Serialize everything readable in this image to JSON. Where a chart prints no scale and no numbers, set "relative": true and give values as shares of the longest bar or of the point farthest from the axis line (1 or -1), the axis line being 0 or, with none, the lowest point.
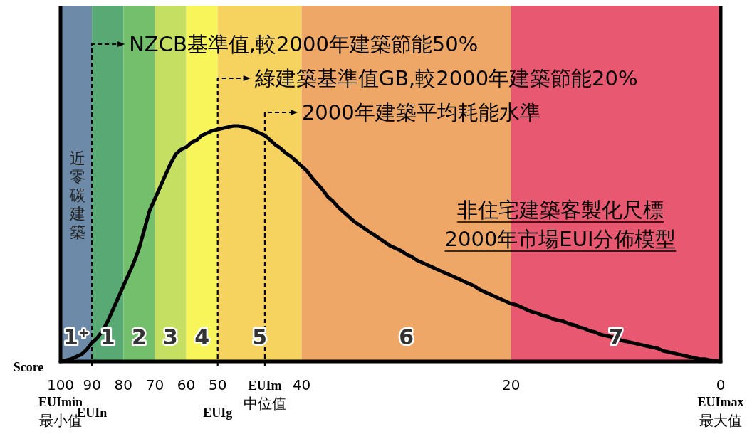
{
  "chart_data": {
    "type": "line",
    "title": "非住宅建築客製化尺標",
    "subtitle": "2000年市場EUI分佈模型",
    "xlabel": "Score",
    "relative": true,
    "categories": [
      "100\nEUImin\n最小值",
      null,
      null,
      null,
      null,
      null,
      "90\nEUIn",
      null,
      null,
      null,
      null,
      null,
      "80",
      null,
      null,
      null,
      null,
      null,
      "70",
      null,
      null,
      null,
      null,
      null,
      "60",
      null,
      null,
      null,
      null,
      null,
      "50\nEUIg",
      null,
      null,
      null,
      null,
      null,
      null,
      null,
      null,
      "EUIm\n中位值",
      null,
      null,
      null,
      null,
      null,
      null,
      "40",
      null,
      null,
      null,
      null,
      null,
      null,
      null,
      null,
      null,
      null,
      null,
      null,
      null,
      null,
      null,
      null,
      null,
      null,
      null,
      null,
      null,
      null,
      null,
      null,
      null,
      null,
      null,
      null,
      null,
      null,
      null,
      null,
      null,
      null,
      null,
      null,
      null,
      null,
      null,
      "20",
      null,
      null,
      null,
      null,
      null,
      null,
      null,
      null,
      null,
      null,
      null,
      null,
      null,
      null,
      null,
      null,
      null,
      null,
      null,
      null,
      null,
      null,
      null,
      null,
      null,
      null,
      null,
      null,
      null,
      null,
      null,
      null,
      null,
      null,
      null,
      null,
      null,
      null,
      null,
      "0\nEUImax\n最大值"
    ],
    "annotations": [
      "近零碳建築"
    ],
    "bands": [
      {
        "axis": "x",
        "from": "100\nEUImin\n最小值",
        "to": "90\nEUIn",
        "label": "1$^{+}$",
        "color": "#6d8ba8"
      },
      {
        "axis": "x",
        "from": "90\nEUIn",
        "to": "80",
        "label": "1",
        "color": "#58a973"
      },
      {
        "axis": "x",
        "from": "80",
        "to": "70",
        "label": "2",
        "color": "#74bf6c"
      },
      {
        "axis": "x",
        "from": "70",
        "to": "60",
        "label": "3",
        "color": "#c5df62"
      },
      {
        "axis": "x",
        "from": "60",
        "to": "50\nEUIg",
        "label": "4",
        "color": "#f7f55a"
      },
      {
        "axis": "x",
        "from": "50\nEUIg",
        "to": "40",
        "label": "5",
        "color": "#f5d35e"
      },
      {
        "axis": "x",
        "from": "40",
        "to": "20",
        "label": "6",
        "color": "#eea767"
      },
      {
        "axis": "x",
        "from": "20",
        "to": "0\nEUImax\n最大值",
        "label": "7",
        "color": "#e85870"
      }
    ],
    "ref_lines": [
      {
        "axis": "x",
        "value": "90\nEUIn",
        "label": "NZCB基準值,較2000年建築節能50%",
        "line_style": "dashed"
      },
      {
        "axis": "x",
        "value": "50\nEUIg",
        "label": "綠建築基準值GB,較2000年建築節能20%",
        "line_style": "dashed"
      },
      {
        "axis": "x",
        "value": "EUIm\n中位值",
        "label": "2000年建築平均耗能水準",
        "line_style": "dashed"
      }
    ],
    "grid": false,
    "marker": "none",
    "line_style": "solid",
    "series": [
      {
        "color": "#000000",
        "values": [
          0,
          0.005,
          0.01,
          0.02,
          0.03,
          0.05,
          0.08,
          0.1,
          0.13,
          0.17,
          0.22,
          0.27,
          0.32,
          0.37,
          0.42,
          0.48,
          0.56,
          0.64,
          0.69,
          0.74,
          0.79,
          0.84,
          0.88,
          0.9,
          0.91,
          0.93,
          0.94,
          0.96,
          0.97,
          0.98,
          0.985,
          0.99,
          0.995,
          1.0,
          1.0,
          0.995,
          0.99,
          0.98,
          0.97,
          0.96,
          0.94,
          0.92,
          0.905,
          0.885,
          0.87,
          0.85,
          0.83,
          0.81,
          0.78,
          0.755,
          0.73,
          0.7,
          0.68,
          0.655,
          0.635,
          0.615,
          0.595,
          0.58,
          0.565,
          0.55,
          0.535,
          0.52,
          0.505,
          0.49,
          0.48,
          0.47,
          0.455,
          0.445,
          0.43,
          0.42,
          0.41,
          0.4,
          0.39,
          0.38,
          0.37,
          0.36,
          0.35,
          0.34,
          0.33,
          0.32,
          0.305,
          0.295,
          0.285,
          0.275,
          0.265,
          0.255,
          0.245,
          0.24,
          0.23,
          0.22,
          0.21,
          0.205,
          0.195,
          0.19,
          0.18,
          0.175,
          0.17,
          0.16,
          0.155,
          0.145,
          0.14,
          0.13,
          0.125,
          0.115,
          0.11,
          0.105,
          0.1,
          0.09,
          0.085,
          0.08,
          0.075,
          0.07,
          0.065,
          0.06,
          0.055,
          0.045,
          0.04,
          0.035,
          0.03,
          0.025,
          0.02,
          0.015,
          0.01,
          0.01,
          0.005,
          0.003,
          0
        ]
      }
    ]
  }
}
